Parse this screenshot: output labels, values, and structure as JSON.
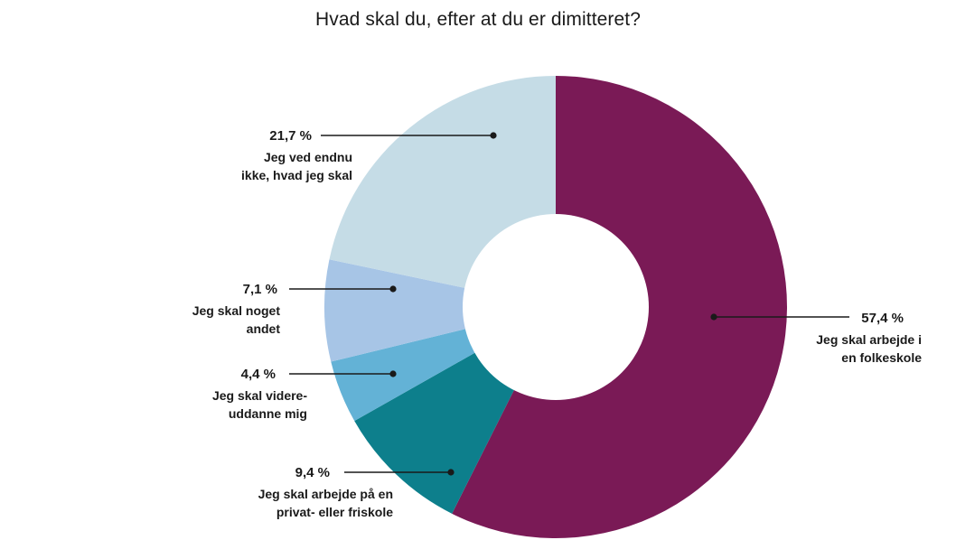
{
  "title": "Hvad skal du, efter at du er dimitteret?",
  "chart_data": {
    "type": "pie",
    "style": "donut",
    "title": "Hvad skal du, efter at du er dimitteret?",
    "unit": "%",
    "slices": [
      {
        "value": 57.4,
        "value_label": "57,4 %",
        "label_lines": [
          "Jeg skal arbejde i",
          "en folkeskole"
        ],
        "color": "#7a1a56"
      },
      {
        "value": 9.4,
        "value_label": "9,4 %",
        "label_lines": [
          "Jeg skal arbejde på en",
          "privat- eller friskole"
        ],
        "color": "#0d7f8c"
      },
      {
        "value": 4.4,
        "value_label": "4,4 %",
        "label_lines": [
          "Jeg skal videre-",
          "uddanne mig"
        ],
        "color": "#63b2d6"
      },
      {
        "value": 7.1,
        "value_label": "7,1 %",
        "label_lines": [
          "Jeg skal noget",
          "andet"
        ],
        "color": "#a7c5e6"
      },
      {
        "value": 21.7,
        "value_label": "21,7 %",
        "label_lines": [
          "Jeg ved endnu",
          "ikke, hvad jeg skal"
        ],
        "color": "#c5dce6"
      }
    ]
  }
}
